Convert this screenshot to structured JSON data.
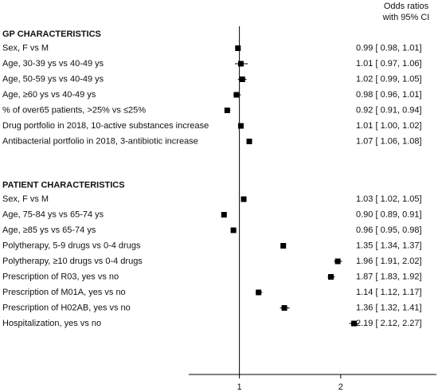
{
  "chart_data": {
    "type": "forest",
    "header": [
      "Odds ratios",
      "with 95% CI"
    ],
    "log_scale": true,
    "xlim": [
      0.707,
      3.85
    ],
    "xticks": [
      1,
      2
    ],
    "reference_line": 1,
    "color": "#000000",
    "groups": [
      {
        "title": "GP CHARACTERISTICS",
        "categories": [
          "Sex, F vs M",
          "Age, 30-39 ys vs 40-49 ys",
          "Age, 50-59 ys vs 40-49 ys",
          "Age, ≥60 ys vs 40-49 ys",
          "% of over65 patients, >25% vs ≤25%",
          "Drug portfolio in 2018, 10-active substances increase",
          "Antibacterial portfolio in 2018, 3-antibiotic increase"
        ],
        "values": [
          0.99,
          1.01,
          1.02,
          0.98,
          0.92,
          1.01,
          1.07
        ],
        "lower": [
          0.98,
          0.97,
          0.99,
          0.96,
          0.91,
          1.0,
          1.06
        ],
        "upper": [
          1.01,
          1.06,
          1.05,
          1.01,
          0.94,
          1.02,
          1.08
        ],
        "value_labels": [
          "0.99 [ 0.98,  1.01]",
          "1.01 [ 0.97,  1.06]",
          "1.02 [ 0.99,  1.05]",
          "0.98 [ 0.96,  1.01]",
          "0.92 [ 0.91,  0.94]",
          "1.01 [ 1.00,  1.02]",
          "1.07 [ 1.06,  1.08]"
        ]
      },
      {
        "title": "PATIENT CHARACTERISTICS",
        "categories": [
          "Sex, F vs M",
          "Age, 75-84 ys vs 65-74 ys",
          "Age, ≥85 ys vs 65-74 ys",
          "Polytherapy, 5-9 drugs vs 0-4 drugs",
          "Polytherapy, ≥10 drugs vs 0-4 drugs",
          "Prescription of R03, yes vs no",
          "Prescription of M01A, yes vs no",
          "Prescription of H02AB, yes vs no",
          "Hospitalization, yes vs no"
        ],
        "values": [
          1.03,
          0.9,
          0.96,
          1.35,
          1.96,
          1.87,
          1.14,
          1.36,
          2.19
        ],
        "lower": [
          1.02,
          0.89,
          0.95,
          1.34,
          1.91,
          1.83,
          1.12,
          1.32,
          2.12
        ],
        "upper": [
          1.05,
          0.91,
          0.98,
          1.37,
          2.02,
          1.92,
          1.17,
          1.41,
          2.27
        ],
        "value_labels": [
          "1.03 [ 1.02,  1.05]",
          "0.90 [ 0.89,  0.91]",
          "0.96 [ 0.95,  0.98]",
          "1.35 [ 1.34,  1.37]",
          "1.96 [ 1.91,  2.02]",
          "1.87 [ 1.83,  1.92]",
          "1.14 [ 1.12,  1.17]",
          "1.36 [ 1.32,  1.41]",
          "2.19 [ 2.12,  2.27]"
        ]
      }
    ]
  }
}
